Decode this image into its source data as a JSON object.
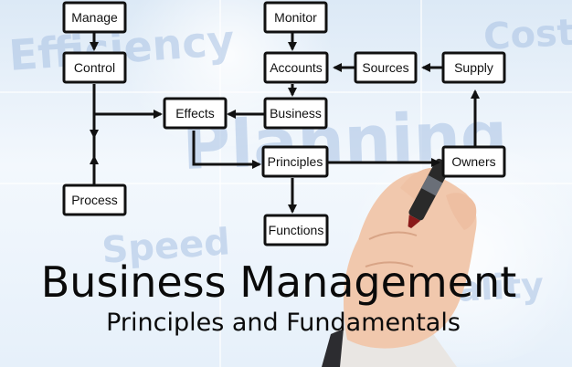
{
  "background_words": [
    "Efficiency",
    "Cost",
    "Planning",
    "Speed",
    "Quality"
  ],
  "nodes": {
    "manage": "Manage",
    "monitor": "Monitor",
    "control": "Control",
    "accounts": "Accounts",
    "sources": "Sources",
    "supply": "Supply",
    "effects": "Effects",
    "business": "Business",
    "principles": "Principles",
    "owners": "Owners",
    "process": "Process",
    "functions": "Functions"
  },
  "edges": [
    {
      "from": "Manage",
      "to": "Control"
    },
    {
      "from": "Monitor",
      "to": "Accounts"
    },
    {
      "from": "Sources",
      "to": "Accounts"
    },
    {
      "from": "Supply",
      "to": "Sources"
    },
    {
      "from": "Accounts",
      "to": "Business"
    },
    {
      "from": "Business",
      "to": "Effects"
    },
    {
      "from": "Control",
      "to": "Effects"
    },
    {
      "from": "Effects",
      "to": "Principles"
    },
    {
      "from": "Principles",
      "to": "Owners"
    },
    {
      "from": "Owners",
      "to": "Supply"
    },
    {
      "from": "Principles",
      "to": "Functions"
    },
    {
      "from": "Process",
      "to": "Control"
    }
  ],
  "title": "Business Management",
  "subtitle": "Principles and Fundamentals",
  "colors": {
    "ink": "#111111",
    "background": "#e6f0fa",
    "background_text": "#a9c2e4",
    "box_fill": "#ffffff",
    "skin": "#f1c8ad",
    "marker": "#2a2a2a"
  }
}
